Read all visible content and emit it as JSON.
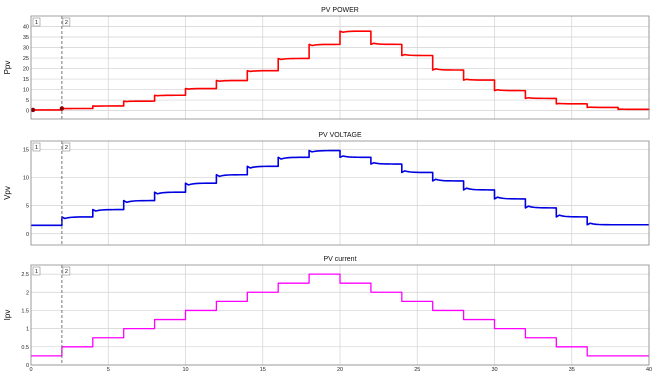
{
  "chart_data": [
    {
      "type": "line",
      "title": "PV POWER",
      "ylabel": "Ppv",
      "color": "#ff0000",
      "cursors": [
        {
          "label": "1",
          "x": 0
        },
        {
          "label": "2",
          "x": 2
        }
      ],
      "cursor_point_color": "#8b0000",
      "xlim": [
        0,
        40
      ],
      "ylim": [
        -4,
        45
      ],
      "xticks": [
        0,
        5,
        10,
        15,
        20,
        25,
        30,
        35,
        40
      ],
      "yticks": [
        0,
        5,
        10,
        15,
        20,
        25,
        30,
        35,
        40
      ],
      "x": [
        0,
        2,
        4,
        6,
        8,
        10,
        12,
        14,
        16,
        18,
        20,
        22,
        24,
        26,
        28,
        30,
        32,
        34,
        36,
        38,
        40
      ],
      "values": [
        0.3,
        1.0,
        2.2,
        4.5,
        7.3,
        10.5,
        14.3,
        19.0,
        24.8,
        31.5,
        37.8,
        31.5,
        26.2,
        19.3,
        14.5,
        9.5,
        5.8,
        3.2,
        1.5,
        0.6,
        0.3
      ],
      "step": true,
      "transient": "power"
    },
    {
      "type": "line",
      "title": "PV VOLTAGE",
      "ylabel": "Vpv",
      "color": "#0000e0",
      "cursors": [
        {
          "label": "1",
          "x": 0
        },
        {
          "label": "2",
          "x": 2
        }
      ],
      "xlim": [
        0,
        40
      ],
      "ylim": [
        -2,
        16.5
      ],
      "xticks": [
        0,
        5,
        10,
        15,
        20,
        25,
        30,
        35,
        40
      ],
      "yticks": [
        0,
        5,
        10,
        15
      ],
      "x": [
        0,
        2,
        4,
        6,
        8,
        10,
        12,
        14,
        16,
        18,
        20,
        22,
        24,
        26,
        28,
        30,
        32,
        34,
        36,
        38,
        40
      ],
      "values": [
        1.5,
        3.0,
        4.3,
        5.9,
        7.4,
        9.0,
        10.5,
        12.0,
        13.6,
        14.8,
        13.6,
        12.4,
        10.9,
        9.4,
        7.8,
        6.2,
        4.6,
        3.0,
        1.6,
        1.6,
        1.6
      ],
      "step": true,
      "transient": "voltage"
    },
    {
      "type": "line",
      "title": "PV current",
      "ylabel": "Ipv",
      "color": "#ff00ff",
      "cursors": [
        {
          "label": "1",
          "x": 0
        },
        {
          "label": "2",
          "x": 2
        }
      ],
      "xlim": [
        0,
        40
      ],
      "ylim": [
        0,
        2.75
      ],
      "xticks": [
        0,
        5,
        10,
        15,
        20,
        25,
        30,
        35,
        40
      ],
      "yticks": [
        0,
        0.5,
        1,
        1.5,
        2,
        2.5
      ],
      "x": [
        0,
        2,
        4,
        6,
        8,
        10,
        12,
        14,
        16,
        18,
        20,
        22,
        24,
        26,
        28,
        30,
        32,
        34,
        36,
        38,
        40
      ],
      "values": [
        0.25,
        0.5,
        0.75,
        1.0,
        1.25,
        1.5,
        1.75,
        2.0,
        2.25,
        2.5,
        2.25,
        2.0,
        1.75,
        1.5,
        1.25,
        1.0,
        0.75,
        0.5,
        0.25,
        0.25,
        0.25
      ],
      "step": true,
      "transient": "none"
    }
  ]
}
